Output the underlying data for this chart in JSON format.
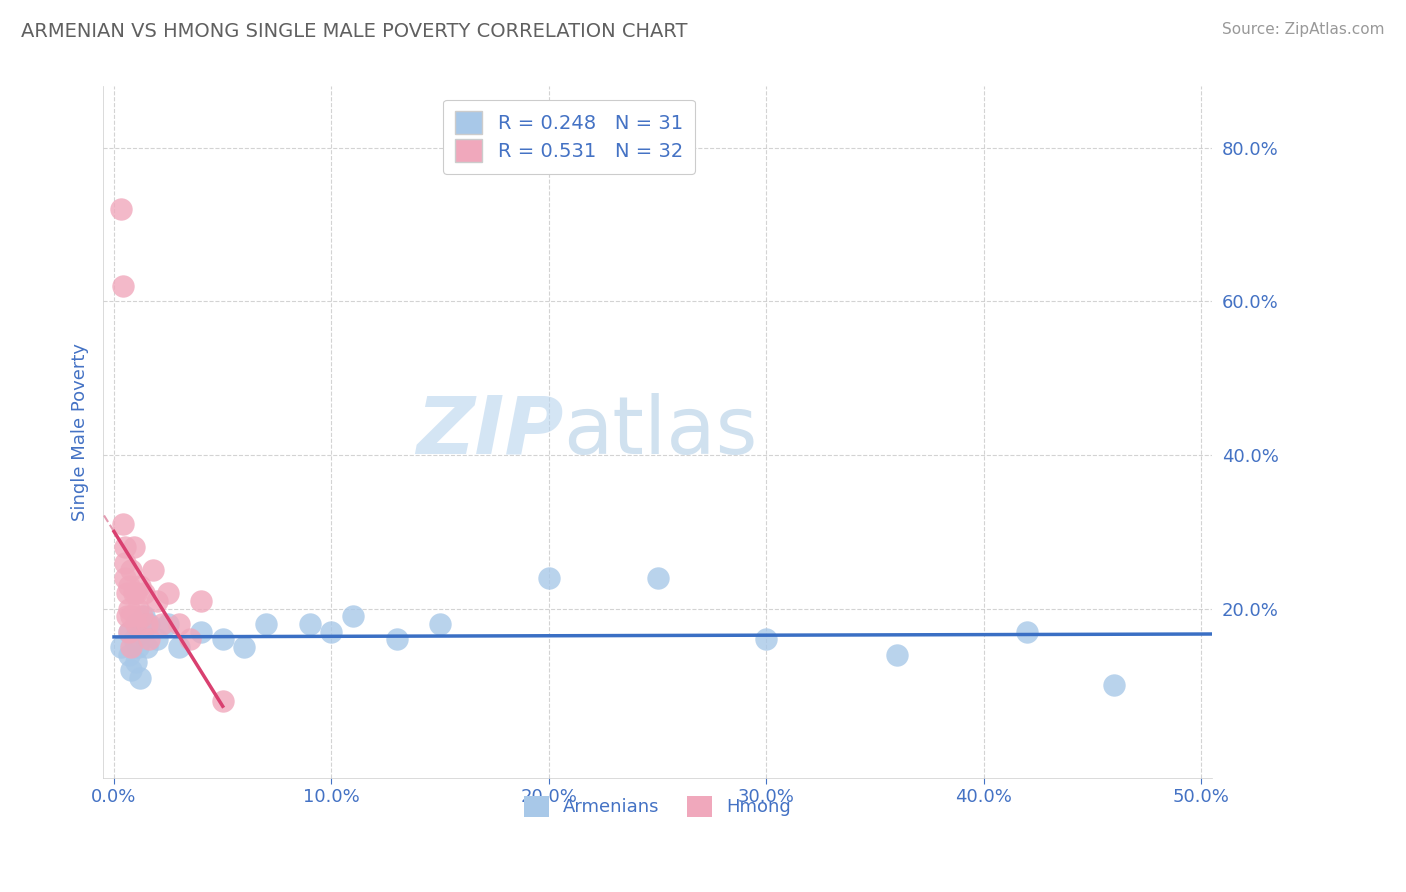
{
  "title": "ARMENIAN VS HMONG SINGLE MALE POVERTY CORRELATION CHART",
  "source": "Source: ZipAtlas.com",
  "ylabel": "Single Male Poverty",
  "xlabel_armenians": "Armenians",
  "xlabel_hmong": "Hmong",
  "xlim": [
    -0.005,
    0.505
  ],
  "ylim": [
    -0.02,
    0.88
  ],
  "xtick_values": [
    0.0,
    0.1,
    0.2,
    0.3,
    0.4,
    0.5
  ],
  "xtick_labels": [
    "0.0%",
    "10.0%",
    "20.0%",
    "30.0%",
    "40.0%",
    "50.0%"
  ],
  "ytick_values": [
    0.2,
    0.4,
    0.6,
    0.8
  ],
  "ytick_labels": [
    "20.0%",
    "40.0%",
    "60.0%",
    "80.0%"
  ],
  "armenian_R": 0.248,
  "armenian_N": 31,
  "hmong_R": 0.531,
  "hmong_N": 32,
  "armenian_color": "#a8c8e8",
  "hmong_color": "#f0a8bc",
  "armenian_line_color": "#3a6fc4",
  "hmong_line_color": "#d94070",
  "hmong_dash_color": "#e090a8",
  "legend_color_armenian": "#a8c8e8",
  "legend_color_hmong": "#f0a8bc",
  "watermark_zip": "ZIP",
  "watermark_atlas": "atlas",
  "grid_color": "#c8c8c8",
  "background_color": "#ffffff",
  "title_color": "#606060",
  "axis_label_color": "#4472c4",
  "tick_color": "#4472c4",
  "legend_R_color": "#4472c4",
  "armenian_x": [
    0.003,
    0.007,
    0.007,
    0.008,
    0.009,
    0.01,
    0.01,
    0.011,
    0.012,
    0.013,
    0.014,
    0.015,
    0.016,
    0.02,
    0.025,
    0.03,
    0.04,
    0.05,
    0.06,
    0.07,
    0.09,
    0.1,
    0.11,
    0.13,
    0.15,
    0.2,
    0.25,
    0.3,
    0.36,
    0.42,
    0.46
  ],
  "armenian_y": [
    0.15,
    0.17,
    0.14,
    0.12,
    0.16,
    0.18,
    0.13,
    0.15,
    0.11,
    0.17,
    0.19,
    0.15,
    0.18,
    0.16,
    0.18,
    0.15,
    0.17,
    0.16,
    0.15,
    0.18,
    0.18,
    0.17,
    0.19,
    0.16,
    0.18,
    0.24,
    0.24,
    0.16,
    0.14,
    0.17,
    0.1
  ],
  "hmong_x": [
    0.003,
    0.004,
    0.004,
    0.005,
    0.005,
    0.005,
    0.006,
    0.006,
    0.007,
    0.007,
    0.007,
    0.008,
    0.008,
    0.008,
    0.009,
    0.009,
    0.01,
    0.01,
    0.011,
    0.012,
    0.013,
    0.014,
    0.015,
    0.016,
    0.018,
    0.02,
    0.022,
    0.025,
    0.03,
    0.035,
    0.04,
    0.05
  ],
  "hmong_y": [
    0.72,
    0.62,
    0.31,
    0.28,
    0.26,
    0.24,
    0.22,
    0.19,
    0.23,
    0.2,
    0.17,
    0.15,
    0.25,
    0.19,
    0.28,
    0.22,
    0.22,
    0.18,
    0.2,
    0.23,
    0.19,
    0.22,
    0.18,
    0.16,
    0.25,
    0.21,
    0.18,
    0.22,
    0.18,
    0.16,
    0.21,
    0.08
  ]
}
